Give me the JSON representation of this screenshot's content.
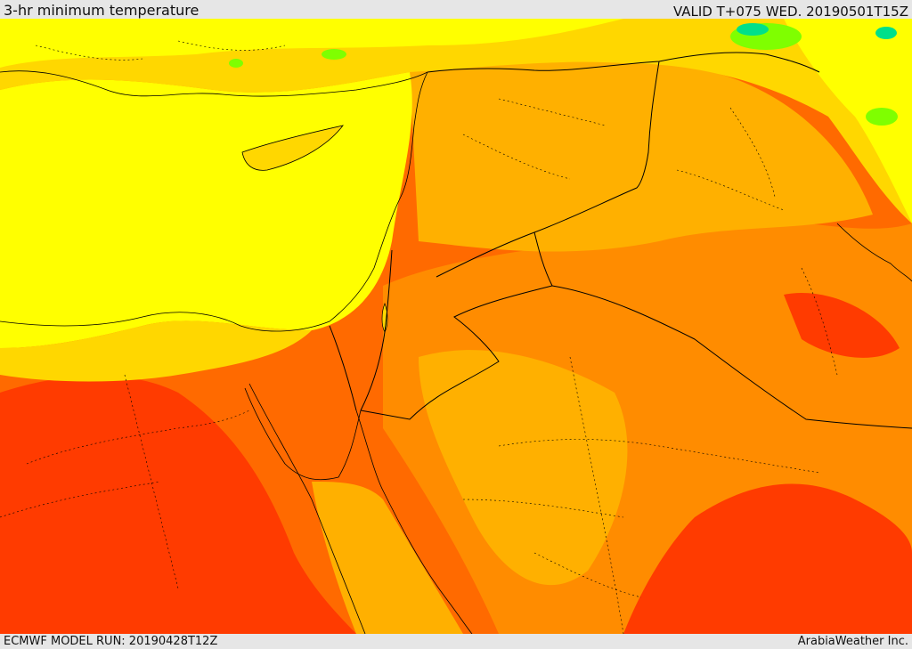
{
  "header": {
    "title": "3-hr minimum temperature",
    "valid": "VALID T+075 WED. 20190501T15Z"
  },
  "footer": {
    "model_run": "ECMWF MODEL RUN: 20190428T12Z",
    "credit": "ArabiaWeather Inc."
  },
  "colors": {
    "yellow": "#ffff00",
    "gold": "#ffd700",
    "amber": "#ffb000",
    "orange": "#ff8c00",
    "dark_orange": "#ff6a00",
    "red_orange": "#ff3b00",
    "green": "#7fff00",
    "teal": "#00e08a",
    "border": "#000000"
  }
}
